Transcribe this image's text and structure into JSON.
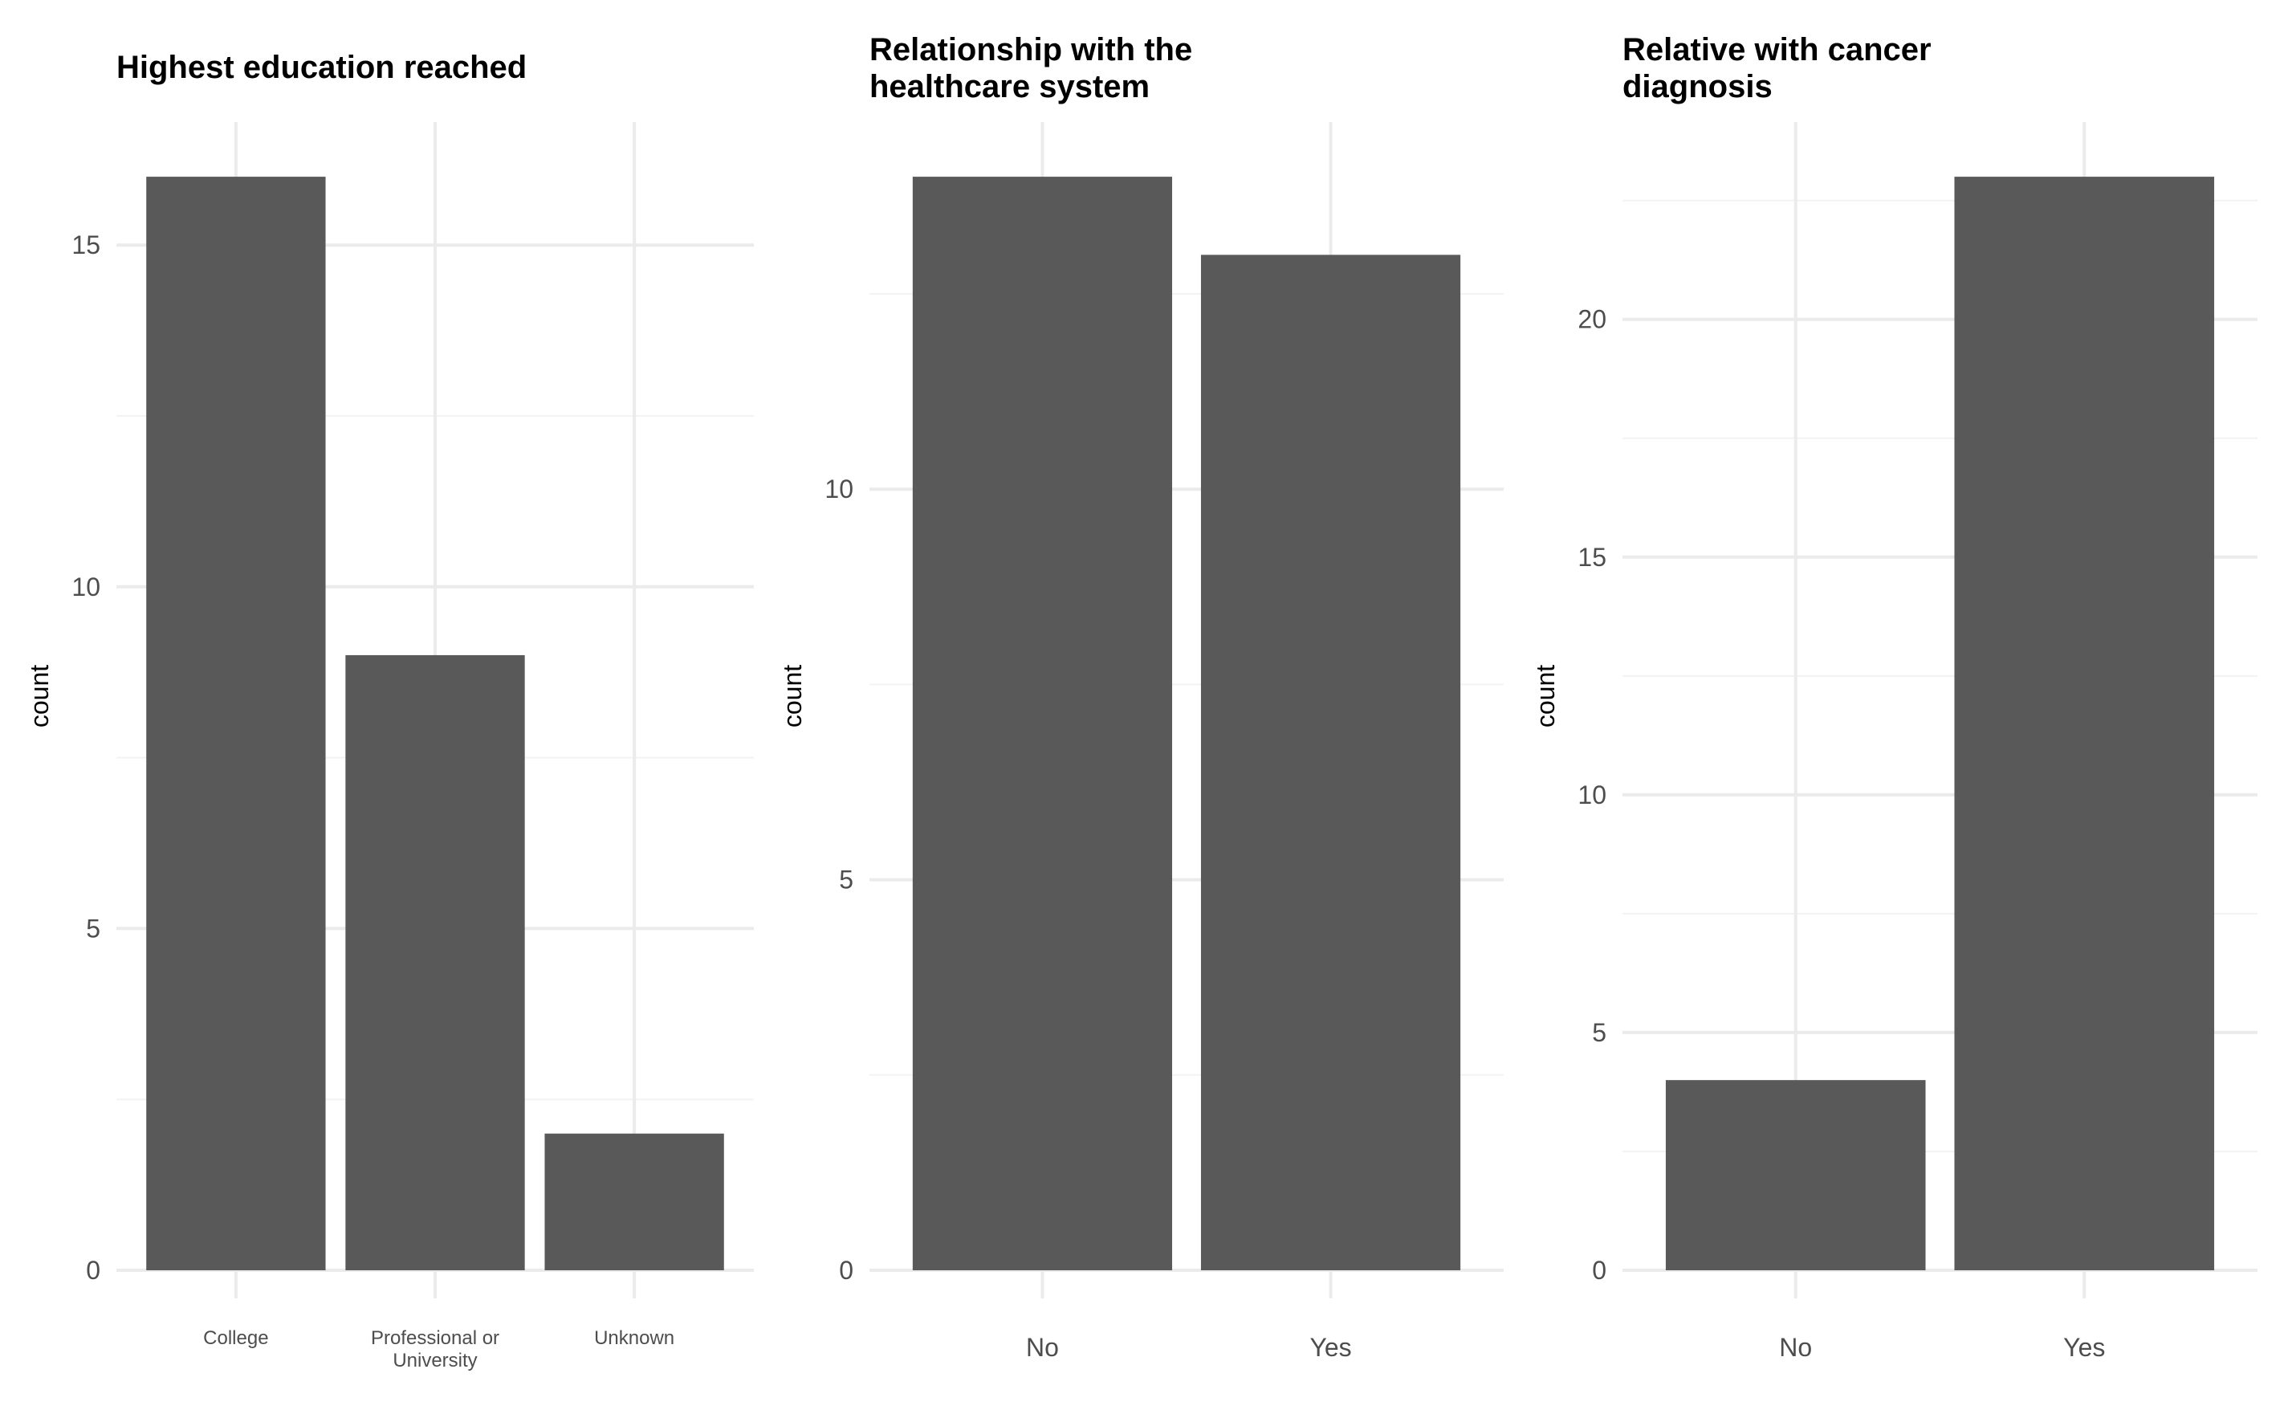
{
  "colors": {
    "bar": "#595959",
    "grid_major": "#ebebeb",
    "grid_minor": "#f3f3f3",
    "tick_text": "#4d4d4d",
    "title_text": "#000000",
    "background": "#ffffff"
  },
  "chart_data": [
    {
      "type": "bar",
      "title": "Highest education reached",
      "title_lines": [
        "Highest education reached"
      ],
      "xlabel": "",
      "ylabel": "count",
      "categories": [
        "College",
        "Professional or University",
        "Unknown"
      ],
      "category_lines": [
        [
          "College"
        ],
        [
          "Professional or",
          "University"
        ],
        [
          "Unknown"
        ]
      ],
      "values": [
        16,
        9,
        2
      ],
      "ylim": [
        0,
        16.8
      ],
      "yticks": [
        0,
        5,
        10,
        15
      ],
      "grid": true,
      "small_x_labels": true
    },
    {
      "type": "bar",
      "title": "Relationship with the healthcare system",
      "title_lines": [
        "Relationship with the",
        "healthcare system"
      ],
      "xlabel": "",
      "ylabel": "count",
      "categories": [
        "No",
        "Yes"
      ],
      "category_lines": [
        [
          "No"
        ],
        [
          "Yes"
        ]
      ],
      "values": [
        14,
        13
      ],
      "ylim": [
        0,
        14.7
      ],
      "yticks": [
        0,
        5,
        10
      ],
      "grid": true,
      "small_x_labels": false
    },
    {
      "type": "bar",
      "title": "Relative with cancer diagnosis",
      "title_lines": [
        "Relative with cancer",
        "diagnosis"
      ],
      "xlabel": "",
      "ylabel": "count",
      "categories": [
        "No",
        "Yes"
      ],
      "category_lines": [
        [
          "No"
        ],
        [
          "Yes"
        ]
      ],
      "values": [
        4,
        23
      ],
      "ylim": [
        0,
        24.15
      ],
      "yticks": [
        0,
        5,
        10,
        15,
        20
      ],
      "grid": true,
      "small_x_labels": false
    }
  ]
}
